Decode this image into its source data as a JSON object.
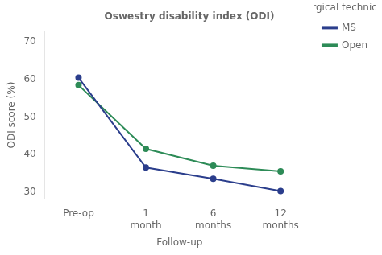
{
  "chart_data": {
    "type": "line",
    "title": "Oswestry disability index (ODI)",
    "x_label": "Follow-up",
    "y_label": "ODI score (%)",
    "categories": [
      "Pre-op",
      "1\nmonth",
      "6\nmonths",
      "12\nmonths"
    ],
    "series": [
      {
        "name": "MS",
        "color": "#2b3e8c",
        "values": [
          60.5,
          36.5,
          33.5,
          30.2
        ]
      },
      {
        "name": "Open",
        "color": "#2d8b57",
        "values": [
          58.5,
          41.5,
          37.0,
          35.5
        ]
      }
    ],
    "legend_title": "Surgical technique",
    "legend": "right",
    "marker": "circle",
    "ylim": [
      28,
      73
    ],
    "yticks": [
      30,
      40,
      50,
      60,
      70
    ],
    "grid": false
  }
}
